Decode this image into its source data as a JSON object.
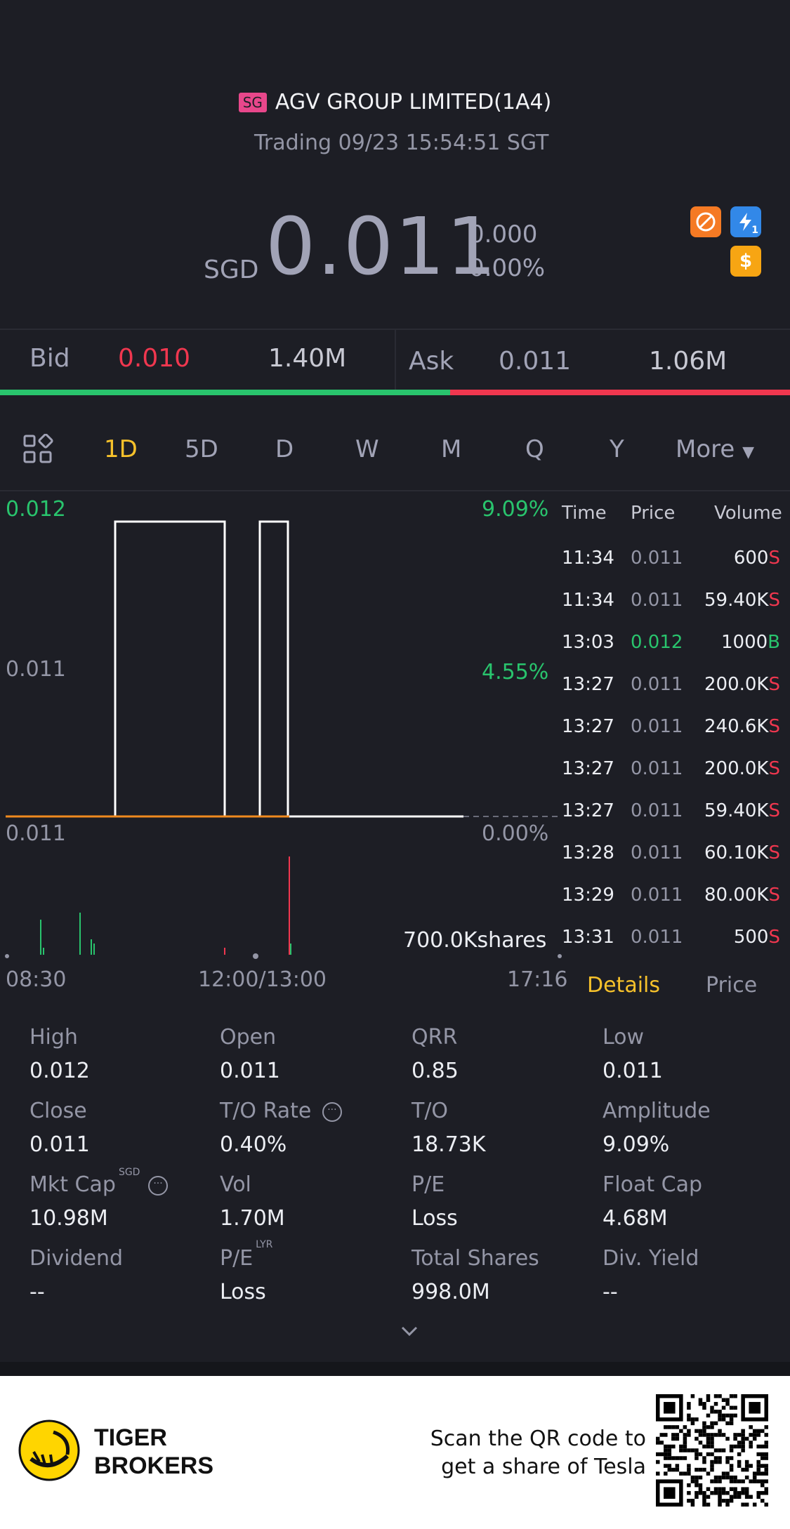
{
  "header": {
    "market_badge": "SG",
    "title": "AGV GROUP LIMITED(1A4)",
    "status": "Trading 09/23 15:54:51 SGT",
    "currency": "SGD",
    "price": "0.011",
    "change": "0.000",
    "change_pct": "0.00%",
    "icons": [
      "no-short-icon",
      "flash-icon",
      "dollar-icon"
    ],
    "icon_b_text": "1"
  },
  "quote": {
    "bid_label": "Bid",
    "bid_price": "0.010",
    "bid_size": "1.40M",
    "ask_label": "Ask",
    "ask_price": "0.011",
    "ask_size": "1.06M",
    "bid_share": 0.57
  },
  "tabs": {
    "items": [
      "1D",
      "5D",
      "D",
      "W",
      "M",
      "Q",
      "Y"
    ],
    "active": "1D",
    "more_label": "More"
  },
  "chart": {
    "y_left": [
      "0.012",
      "0.011",
      "0.011"
    ],
    "y_right": [
      "9.09%",
      "4.55%",
      "0.00%"
    ],
    "x_labels": [
      "08:30",
      "12:00/13:00",
      "17:16"
    ],
    "volume_label": "700.0Kshares",
    "colors": {
      "up": "#29c46d",
      "down": "#f0374f",
      "line": "#ffffff",
      "avg": "#f08a1e"
    }
  },
  "chart_data": {
    "type": "line",
    "x": [
      "08:30",
      "10:00",
      "10:01",
      "11:34",
      "11:35",
      "12:00/13:00",
      "13:03",
      "13:27",
      "13:28",
      "17:16"
    ],
    "values": [
      0.011,
      0.011,
      0.012,
      0.012,
      0.011,
      0.011,
      0.012,
      0.012,
      0.011,
      0.011
    ],
    "ylim": [
      0.011,
      0.012
    ],
    "volume_label": "700.0Kshares"
  },
  "trades": {
    "headers": {
      "time": "Time",
      "price": "Price",
      "volume": "Volume"
    },
    "rows": [
      {
        "time": "11:34",
        "price": "0.011",
        "vol": "600",
        "side": "S"
      },
      {
        "time": "11:34",
        "price": "0.011",
        "vol": "59.40K",
        "side": "S"
      },
      {
        "time": "13:03",
        "price": "0.012",
        "vol": "1000",
        "side": "B"
      },
      {
        "time": "13:27",
        "price": "0.011",
        "vol": "200.0K",
        "side": "S"
      },
      {
        "time": "13:27",
        "price": "0.011",
        "vol": "240.6K",
        "side": "S"
      },
      {
        "time": "13:27",
        "price": "0.011",
        "vol": "200.0K",
        "side": "S"
      },
      {
        "time": "13:27",
        "price": "0.011",
        "vol": "59.40K",
        "side": "S"
      },
      {
        "time": "13:28",
        "price": "0.011",
        "vol": "60.10K",
        "side": "S"
      },
      {
        "time": "13:29",
        "price": "0.011",
        "vol": "80.00K",
        "side": "S"
      },
      {
        "time": "13:31",
        "price": "0.011",
        "vol": "500",
        "side": "S"
      }
    ],
    "tab_details": "Details",
    "tab_price": "Price"
  },
  "details": {
    "high_label": "High",
    "high": "0.012",
    "open_label": "Open",
    "open": "0.011",
    "qrr_label": "QRR",
    "qrr": "0.85",
    "low_label": "Low",
    "low": "0.011",
    "close_label": "Close",
    "close": "0.011",
    "tor_label": "T/O Rate",
    "tor": "0.40%",
    "to_label": "T/O",
    "to": "18.73K",
    "amp_label": "Amplitude",
    "amp": "9.09%",
    "mktcap_label": "Mkt Cap",
    "mktcap_sup": "SGD",
    "mktcap": "10.98M",
    "vol_label": "Vol",
    "vol": "1.70M",
    "pe_label": "P/E",
    "pe": "Loss",
    "float_label": "Float Cap",
    "float": "4.68M",
    "div_label": "Dividend",
    "div": "--",
    "pelyr_label": "P/E",
    "pelyr_sup": "LYR",
    "pelyr": "Loss",
    "shares_label": "Total Shares",
    "shares": "998.0M",
    "yield_label": "Div. Yield",
    "yield": "--"
  },
  "footer": {
    "brand_line1": "TIGER",
    "brand_line2": "BROKERS",
    "cta_line1": "Scan the QR code to",
    "cta_line2": "get a share of Tesla"
  }
}
